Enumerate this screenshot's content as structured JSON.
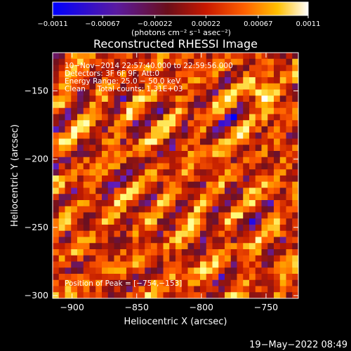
{
  "chart_data": {
    "type": "heatmap",
    "title": "Reconstructed RHESSI Image",
    "xlabel": "Heliocentric X (arcsec)",
    "ylabel": "Heliocentric Y (arcsec)",
    "xlim": [
      -915,
      -725
    ],
    "ylim": [
      -302,
      -122
    ],
    "x_ticks": [
      -900,
      -850,
      -800,
      -750
    ],
    "x_tick_labels": [
      "−900",
      "−850",
      "−800",
      "−750"
    ],
    "y_ticks": [
      -150,
      -200,
      -250,
      -300
    ],
    "y_tick_labels": [
      "−150",
      "−200",
      "−250",
      "−300"
    ],
    "grid": false,
    "colorbar": {
      "min": -0.0011,
      "max": 0.0011,
      "tick_values": [
        -0.0011,
        -0.00067,
        -0.00022,
        0.00022,
        0.00067,
        0.0011
      ],
      "tick_labels": [
        "−0.0011",
        "−0.00067",
        "−0.00022",
        "0.00022",
        "0.00067",
        "0.0011"
      ],
      "unit_label": "(photons cm⁻² s⁻¹ asec⁻²)"
    },
    "peak_position": [
      -754,
      -153
    ],
    "colors": {
      "colormap": [
        "#0000ff",
        "#6a1fb0",
        "#6b1020",
        "#c01a00",
        "#ff5a00",
        "#ffb000",
        "#ffff80",
        "#ffffff"
      ]
    }
  },
  "annotations": {
    "line1": "10−Nov−2014 22:57:40.000 to 22:59:56.000",
    "line2": "Detectors: 3F 6F 9F, Att:0",
    "line3": "Energy Range: 25.0 − 50.0 keV",
    "line4": "Clean     Total counts: 1.31E+03",
    "peak": "Position of Peak = [−754,−153]"
  },
  "footer": {
    "timestamp": "19−May−2022 08:49"
  }
}
